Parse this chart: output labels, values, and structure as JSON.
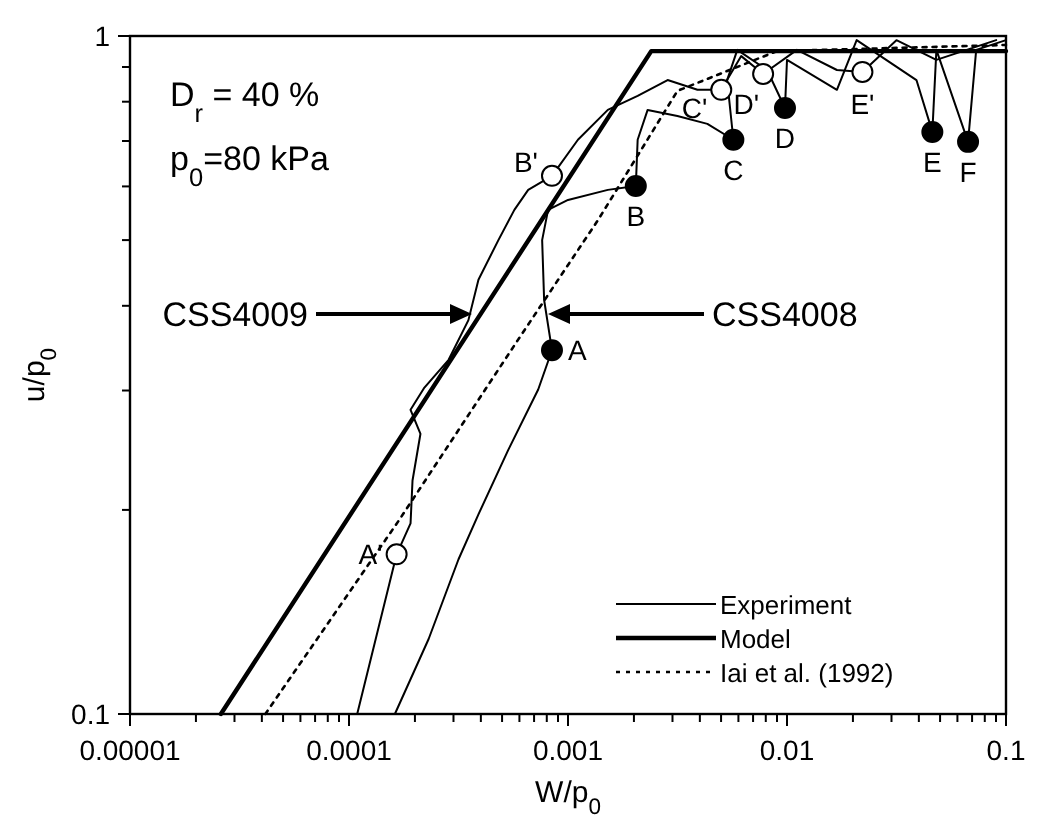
{
  "chart_data": {
    "type": "line",
    "xlabel": "W/p$_{0}$",
    "ylabel": "u/p$_{0}$",
    "log": "xy",
    "grid": false,
    "legend": "bottom right",
    "xlim": [
      1e-05,
      0.1
    ],
    "ylim": [
      0.1,
      1
    ],
    "xticks": [
      {
        "value": 1e-05,
        "label": "0.00001"
      },
      {
        "value": 2e-05,
        "label": null
      },
      {
        "value": 3e-05,
        "label": null
      },
      {
        "value": 4e-05,
        "label": null
      },
      {
        "value": 5e-05,
        "label": null
      },
      {
        "value": 6e-05,
        "label": null
      },
      {
        "value": 7e-05,
        "label": null
      },
      {
        "value": 8e-05,
        "label": null
      },
      {
        "value": 9e-05,
        "label": null
      },
      0.0001,
      {
        "value": 0.0002,
        "label": null
      },
      {
        "value": 0.0003,
        "label": null
      },
      {
        "value": 0.0004,
        "label": null
      },
      {
        "value": 0.0005,
        "label": null
      },
      {
        "value": 0.0006,
        "label": null
      },
      {
        "value": 0.0007,
        "label": null
      },
      {
        "value": 0.0008,
        "label": null
      },
      {
        "value": 0.0009,
        "label": null
      },
      0.001,
      {
        "value": 0.002,
        "label": null
      },
      {
        "value": 0.003,
        "label": null
      },
      {
        "value": 0.004,
        "label": null
      },
      {
        "value": 0.005,
        "label": null
      },
      {
        "value": 0.006,
        "label": null
      },
      {
        "value": 0.007,
        "label": null
      },
      {
        "value": 0.008,
        "label": null
      },
      {
        "value": 0.009,
        "label": null
      },
      0.01,
      {
        "value": 0.02,
        "label": null
      },
      {
        "value": 0.03,
        "label": null
      },
      {
        "value": 0.04,
        "label": null
      },
      {
        "value": 0.05,
        "label": null
      },
      {
        "value": 0.06,
        "label": null
      },
      {
        "value": 0.07,
        "label": null
      },
      {
        "value": 0.08,
        "label": null
      },
      {
        "value": 0.09,
        "label": null
      },
      0.1
    ],
    "yticks": [
      0.1,
      {
        "value": 0.2,
        "label": null
      },
      {
        "value": 0.3,
        "label": null
      },
      {
        "value": 0.4,
        "label": null
      },
      {
        "value": 0.5,
        "label": null
      },
      {
        "value": 0.6,
        "label": null
      },
      {
        "value": 0.7,
        "label": null
      },
      {
        "value": 0.8,
        "label": null
      },
      {
        "value": 0.9,
        "label": null
      },
      1
    ],
    "series": [
      {
        "name": "Experiment",
        "color": "#000000",
        "line_style": "solid",
        "x": [
          0.000109,
          0.000165,
          0.000191,
          0.000195,
          0.000212,
          0.000191,
          0.000221,
          0.000285,
          0.000351,
          0.00039,
          0.000481,
          0.000569,
          0.000658,
          0.000845,
          0.00111,
          0.00152,
          0.00208,
          0.00285,
          0.0039,
          0.00501,
          0.00618,
          0.00778,
          0.0111,
          0.0169,
          0.0221,
          0.0316,
          0.0481,
          0.0902
        ],
        "values": [
          0.1,
          0.172,
          0.191,
          0.221,
          0.259,
          0.281,
          0.303,
          0.333,
          0.381,
          0.437,
          0.5,
          0.554,
          0.593,
          0.622,
          0.703,
          0.778,
          0.816,
          0.861,
          0.833,
          0.833,
          0.934,
          0.879,
          0.954,
          0.891,
          0.885,
          0.986,
          0.922,
          0.986
        ]
      },
      {
        "color": "#000000",
        "line_style": "solid",
        "x": [
          0.000162,
          0.000231,
          0.000316,
          0.00039,
          0.000533,
          0.000731,
          0.000845,
          0.000778,
          0.000762,
          0.000811,
          0.001,
          0.00152,
          0.00204,
          0.00208,
          0.00231,
          0.00316,
          0.00433,
          0.00569,
          0.00533,
          0.00593,
          0.00811,
          0.00979,
          0.01,
          0.0169,
          0.0208,
          0.039,
          0.0461,
          0.0481,
          0.0671,
          0.0731,
          0.1
        ],
        "values": [
          0.1,
          0.129,
          0.169,
          0.197,
          0.245,
          0.301,
          0.344,
          0.408,
          0.5,
          0.554,
          0.573,
          0.593,
          0.601,
          0.703,
          0.778,
          0.762,
          0.742,
          0.703,
          0.861,
          0.954,
          0.891,
          0.783,
          0.922,
          0.833,
          0.986,
          0.861,
          0.722,
          0.954,
          0.698,
          0.954,
          0.986
        ]
      },
      {
        "name": "Model",
        "color": "#000000",
        "line_style": "solid",
        "x": [
          2.6e-05,
          0.0024,
          0.1
        ],
        "values": [
          0.1,
          0.95,
          0.95
        ]
      },
      {
        "name": "Iai et al. (1992)",
        "color": "#000000",
        "line_style": "dotted",
        "x": [
          4.15e-05,
          0.000169,
          0.00059,
          0.00137,
          0.00316,
          0.009,
          0.1
        ],
        "values": [
          0.1,
          0.193,
          0.356,
          0.535,
          0.83,
          0.95,
          0.97
        ]
      },
      {
        "type": "scatter",
        "marker": "circle",
        "color": "#000000",
        "x": [
          0.000845,
          0.00204,
          0.00569,
          0.00979,
          0.0461,
          0.0671
        ],
        "values": [
          0.344,
          0.601,
          0.703,
          0.783,
          0.722,
          0.698
        ]
      },
      {
        "type": "scatter",
        "marker": "circle",
        "color": "#ffffff",
        "x": [
          0.000165,
          0.000845,
          0.00501,
          0.00778,
          0.0221
        ],
        "values": [
          0.172,
          0.622,
          0.833,
          0.879,
          0.885
        ]
      }
    ],
    "annotations": [
      "D$_{r}$ = 40 %",
      "p$_{0}$=80 kPa",
      "CSS4009",
      "CSS4008",
      {
        "text": "A",
        "x": 0.000845,
        "y": 0.344
      },
      {
        "text": "B",
        "x": 0.00204,
        "y": 0.601
      },
      {
        "text": "C",
        "x": 0.00569,
        "y": 0.703
      },
      {
        "text": "D",
        "x": 0.00979,
        "y": 0.783
      },
      {
        "text": "E",
        "x": 0.0461,
        "y": 0.722
      },
      {
        "text": "F",
        "x": 0.0671,
        "y": 0.698
      },
      {
        "text": "A'",
        "x": 0.000165,
        "y": 0.172
      },
      {
        "text": "B'",
        "x": 0.000845,
        "y": 0.622
      },
      {
        "text": "C'",
        "x": 0.00501,
        "y": 0.833
      },
      {
        "text": "D'",
        "x": 0.00778,
        "y": 0.879
      },
      {
        "text": "E'",
        "x": 0.0221,
        "y": 0.885
      }
    ]
  }
}
